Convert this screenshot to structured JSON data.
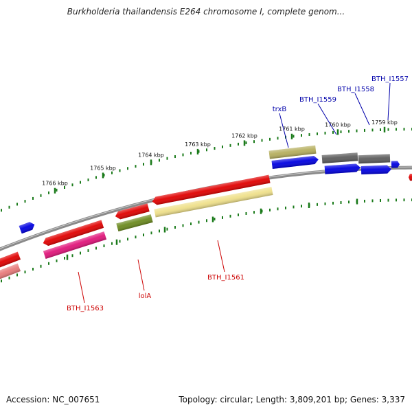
{
  "title": "Burkholderia thailandensis E264 chromosome I, complete genom...",
  "footer": {
    "accession": "Accession: NC_007651",
    "summary": "Topology: circular; Length: 3,809,201 bp; Genes: 3,337"
  },
  "scale": {
    "unit": "kbp",
    "ticks": [
      "1766 kbp",
      "1765 kbp",
      "1764 kbp",
      "1763 kbp",
      "1762 kbp",
      "1761 kbp",
      "1760 kbp",
      "1759 kbp"
    ]
  },
  "colors": {
    "red": "#e00000",
    "magenta": "#e0157a",
    "olive": "#6b8a1f",
    "pale_yellow": "#efe08a",
    "khaki": "#b5ae5d",
    "blue": "#0000e0",
    "gray": "#5c5c5c",
    "salmon": "#e87a7a",
    "backbone": "#8a8a8a",
    "tick": "#1a7a1a",
    "label_red": "#cc0000",
    "label_blue": "#0000aa"
  },
  "gene_labels": [
    {
      "text": "BTH_I1563",
      "strand": "reverse"
    },
    {
      "text": "lolA",
      "strand": "reverse"
    },
    {
      "text": "BTH_I1561",
      "strand": "reverse"
    },
    {
      "text": "trxB",
      "strand": "forward"
    },
    {
      "text": "BTH_I1559",
      "strand": "forward"
    },
    {
      "text": "BTH_I1558",
      "strand": "forward"
    },
    {
      "text": "BTH_I1557",
      "strand": "forward"
    }
  ]
}
